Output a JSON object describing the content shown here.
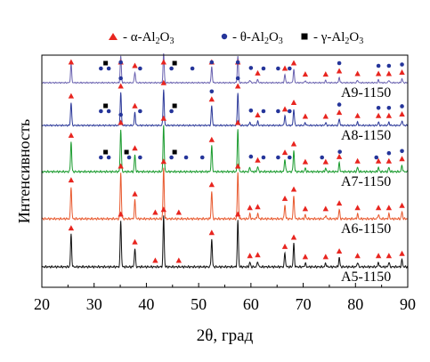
{
  "chart_data": {
    "type": "line",
    "xlabel": "2θ, град",
    "ylabel": "Интенсивность",
    "xlim": [
      20,
      90
    ],
    "xticks": [
      20,
      30,
      40,
      50,
      60,
      70,
      80,
      90
    ],
    "legend_position": "top",
    "legend": [
      {
        "marker": "triangle",
        "color": "#e8251f",
        "label": "α-Al2O3"
      },
      {
        "marker": "circle",
        "color": "#25359a",
        "label": "θ-Al2O3"
      },
      {
        "marker": "square",
        "color": "#000000",
        "label": "γ-Al2O3"
      }
    ],
    "series": [
      {
        "name": "A5-1150",
        "color": "#111111",
        "peaks": [
          [
            25.6,
            7
          ],
          [
            35.1,
            10
          ],
          [
            37.8,
            4
          ],
          [
            43.3,
            11
          ],
          [
            52.5,
            6
          ],
          [
            57.5,
            10
          ],
          [
            59.8,
            1
          ],
          [
            61.3,
            1.2
          ],
          [
            66.5,
            3
          ],
          [
            68.2,
            5
          ],
          [
            70.4,
            0.8
          ],
          [
            74.3,
            0.8
          ],
          [
            76.9,
            2
          ],
          [
            80.4,
            1
          ],
          [
            84.4,
            1
          ],
          [
            86.4,
            1
          ],
          [
            88.9,
            1.5
          ]
        ],
        "alpha_markers": [
          25.6,
          35.1,
          37.8,
          41.7,
          43.3,
          46.2,
          52.5,
          57.5,
          59.8,
          61.3,
          66.5,
          68.2,
          70.4,
          74.3,
          76.9,
          80.4,
          84.4,
          86.4,
          88.9
        ]
      },
      {
        "name": "A6-1150",
        "color": "#e8592e",
        "peaks": [
          [
            25.6,
            7
          ],
          [
            35.1,
            10
          ],
          [
            37.8,
            4
          ],
          [
            43.3,
            11
          ],
          [
            52.5,
            6
          ],
          [
            57.5,
            10
          ],
          [
            59.8,
            1
          ],
          [
            61.3,
            1.2
          ],
          [
            66.5,
            3
          ],
          [
            68.2,
            5
          ],
          [
            70.4,
            0.8
          ],
          [
            74.3,
            0.8
          ],
          [
            76.9,
            2
          ],
          [
            80.4,
            1
          ],
          [
            84.4,
            1
          ],
          [
            86.4,
            1
          ],
          [
            88.9,
            1.5
          ]
        ],
        "alpha_markers": [
          25.6,
          35.1,
          37.8,
          41.7,
          43.3,
          46.2,
          52.5,
          57.5,
          59.8,
          61.3,
          66.5,
          68.2,
          70.4,
          74.3,
          76.9,
          80.4,
          84.4,
          86.4,
          88.9
        ]
      },
      {
        "name": "A7-1150",
        "color": "#1a9b2e",
        "peaks": [
          [
            25.6,
            7
          ],
          [
            35.1,
            10
          ],
          [
            37.8,
            4
          ],
          [
            43.3,
            11
          ],
          [
            52.5,
            6
          ],
          [
            57.5,
            10
          ],
          [
            59.8,
            1
          ],
          [
            61.3,
            1.2
          ],
          [
            66.5,
            3
          ],
          [
            68.2,
            5
          ],
          [
            70.4,
            0.8
          ],
          [
            74.3,
            0.8
          ],
          [
            76.9,
            2
          ],
          [
            80.4,
            1
          ],
          [
            84.4,
            1
          ],
          [
            86.4,
            1
          ],
          [
            88.9,
            1.5
          ]
        ],
        "alpha_markers": [
          25.6,
          35.1,
          37.8,
          43.3,
          52.5,
          57.5,
          61.3,
          66.5,
          68.2,
          70.4,
          74.3,
          76.9,
          80.4,
          84.4,
          86.4,
          88.9
        ],
        "theta_markers": [
          31.3,
          32.8,
          35.1,
          36.7,
          38.8,
          44.8,
          47.6,
          50.7,
          60.0,
          62.4,
          65.2,
          67.4,
          73.6,
          77.0,
          84.0,
          86.4,
          88.9
        ],
        "gamma_markers": [
          32.2,
          36.2,
          45.4
        ]
      },
      {
        "name": "A8-1150",
        "color": "#2d3a9a",
        "peaks": [
          [
            25.6,
            7
          ],
          [
            35.1,
            10
          ],
          [
            37.8,
            4
          ],
          [
            43.3,
            11
          ],
          [
            52.5,
            6
          ],
          [
            57.5,
            10
          ],
          [
            59.8,
            1
          ],
          [
            61.3,
            1.2
          ],
          [
            66.5,
            3
          ],
          [
            68.2,
            5
          ],
          [
            70.4,
            0.8
          ],
          [
            74.3,
            0.8
          ],
          [
            76.9,
            2
          ],
          [
            80.4,
            1
          ],
          [
            84.4,
            1
          ],
          [
            86.4,
            1
          ],
          [
            88.9,
            1.5
          ]
        ],
        "alpha_markers": [
          25.6,
          35.1,
          37.8,
          43.3,
          52.5,
          57.5,
          61.3,
          66.5,
          68.2,
          70.4,
          74.3,
          76.9,
          80.4,
          84.4,
          86.4,
          88.9
        ],
        "theta_markers": [
          31.3,
          32.8,
          35.1,
          38.8,
          44.8,
          52.5,
          57.5,
          60.0,
          62.4,
          65.2,
          67.4,
          76.9,
          84.4,
          86.4,
          88.9
        ],
        "gamma_markers": [
          32.2,
          45.4
        ]
      },
      {
        "name": "A9-1150",
        "color": "#6a62b0",
        "peaks": [
          [
            25.6,
            7
          ],
          [
            35.1,
            10
          ],
          [
            37.8,
            4
          ],
          [
            43.3,
            11
          ],
          [
            52.5,
            6
          ],
          [
            57.5,
            10
          ],
          [
            59.8,
            1
          ],
          [
            61.3,
            1.2
          ],
          [
            66.5,
            3
          ],
          [
            68.2,
            5
          ],
          [
            70.4,
            0.8
          ],
          [
            74.3,
            0.8
          ],
          [
            76.9,
            2
          ],
          [
            80.4,
            1
          ],
          [
            84.4,
            1
          ],
          [
            86.4,
            1
          ],
          [
            88.9,
            1.5
          ]
        ],
        "alpha_markers": [
          25.6,
          35.1,
          37.8,
          43.3,
          52.5,
          57.5,
          61.3,
          66.5,
          68.2,
          70.4,
          74.3,
          76.9,
          80.4,
          84.4,
          86.4,
          88.9
        ],
        "theta_markers": [
          31.3,
          32.8,
          35.1,
          38.8,
          44.8,
          48.8,
          52.5,
          57.5,
          60.0,
          62.4,
          65.2,
          67.4,
          76.9,
          84.4,
          86.4,
          88.9
        ],
        "gamma_markers": [
          32.2,
          45.4
        ]
      }
    ]
  }
}
